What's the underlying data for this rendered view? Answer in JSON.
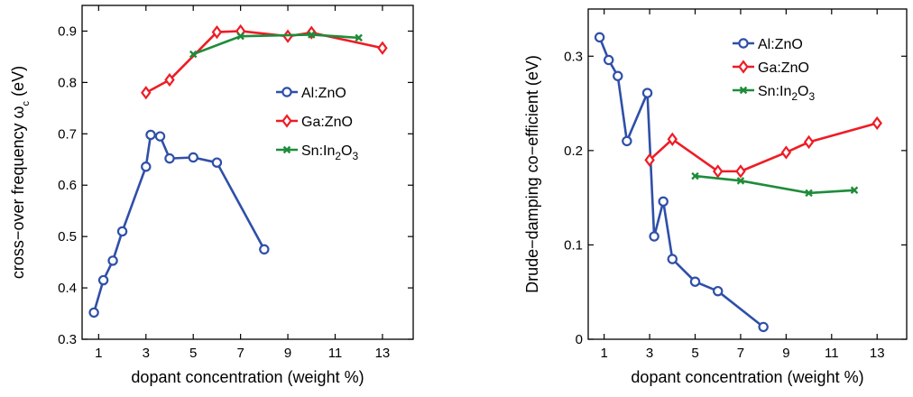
{
  "colors": {
    "Al:ZnO": "#2f4fa8",
    "Ga:ZnO": "#ee1c25",
    "Sn:In2O3": "#1e8c3a"
  },
  "chart_data": [
    {
      "type": "line",
      "title": "",
      "xlabel": "dopant concentration (weight %)",
      "ylabel": "cross−over frequency ω",
      "ylabel_subscript": "c",
      "ylabel_unit": " (eV)",
      "xlim": [
        0.3,
        14.3
      ],
      "ylim": [
        0.3,
        0.95
      ],
      "xticks": [
        1,
        3,
        5,
        7,
        9,
        11,
        13
      ],
      "yticks": [
        0.3,
        0.4,
        0.5,
        0.6,
        0.7,
        0.8,
        0.9
      ],
      "ytick_labels": [
        "0.3",
        "0.4",
        "0.5",
        "0.6",
        "0.7",
        "0.8",
        "0.9"
      ],
      "legend_position": "right",
      "grid": false,
      "series": [
        {
          "name": "Al:ZnO",
          "legend_parts": [
            "Al:ZnO"
          ],
          "marker": "circle",
          "x": [
            0.8,
            1.2,
            1.6,
            2.0,
            3.0,
            3.2,
            3.6,
            4.0,
            5.0,
            6.0,
            8.0
          ],
          "y": [
            0.352,
            0.415,
            0.453,
            0.51,
            0.636,
            0.698,
            0.695,
            0.652,
            0.654,
            0.644,
            0.475
          ]
        },
        {
          "name": "Ga:ZnO",
          "legend_parts": [
            "Ga:ZnO"
          ],
          "marker": "diamond",
          "x": [
            3,
            4,
            6,
            7,
            9,
            10,
            13
          ],
          "y": [
            0.78,
            0.805,
            0.898,
            0.9,
            0.89,
            0.897,
            0.867
          ]
        },
        {
          "name": "Sn:In2O3",
          "legend_parts": [
            "Sn:In",
            "2",
            "O",
            "3"
          ],
          "marker": "x",
          "x": [
            5,
            7,
            10,
            12
          ],
          "y": [
            0.855,
            0.89,
            0.893,
            0.887
          ]
        }
      ]
    },
    {
      "type": "line",
      "title": "",
      "xlabel": "dopant concentration (weight %)",
      "ylabel": "Drude−damping co−efficient (eV)",
      "ylabel_subscript": "",
      "ylabel_unit": "",
      "xlim": [
        0.3,
        14.3
      ],
      "ylim": [
        0,
        0.35
      ],
      "xticks": [
        1,
        3,
        5,
        7,
        9,
        11,
        13
      ],
      "yticks": [
        0,
        0.1,
        0.2,
        0.3
      ],
      "ytick_labels": [
        "0",
        "0.1",
        "0.2",
        "0.3"
      ],
      "legend_position": "top-right",
      "grid": false,
      "series": [
        {
          "name": "Al:ZnO",
          "legend_parts": [
            "Al:ZnO"
          ],
          "marker": "circle",
          "x": [
            0.8,
            1.2,
            1.6,
            2.0,
            2.9,
            3.2,
            3.6,
            4.0,
            5.0,
            6.0,
            8.0
          ],
          "y": [
            0.32,
            0.296,
            0.279,
            0.21,
            0.261,
            0.109,
            0.146,
            0.085,
            0.061,
            0.051,
            0.013
          ]
        },
        {
          "name": "Ga:ZnO",
          "legend_parts": [
            "Ga:ZnO"
          ],
          "marker": "diamond",
          "x": [
            3,
            4,
            6,
            7,
            9,
            10,
            13
          ],
          "y": [
            0.19,
            0.212,
            0.178,
            0.178,
            0.198,
            0.209,
            0.229
          ]
        },
        {
          "name": "Sn:In2O3",
          "legend_parts": [
            "Sn:In",
            "2",
            "O",
            "3"
          ],
          "marker": "x",
          "x": [
            5,
            7,
            10,
            12
          ],
          "y": [
            0.173,
            0.168,
            0.155,
            0.158
          ]
        }
      ]
    }
  ]
}
